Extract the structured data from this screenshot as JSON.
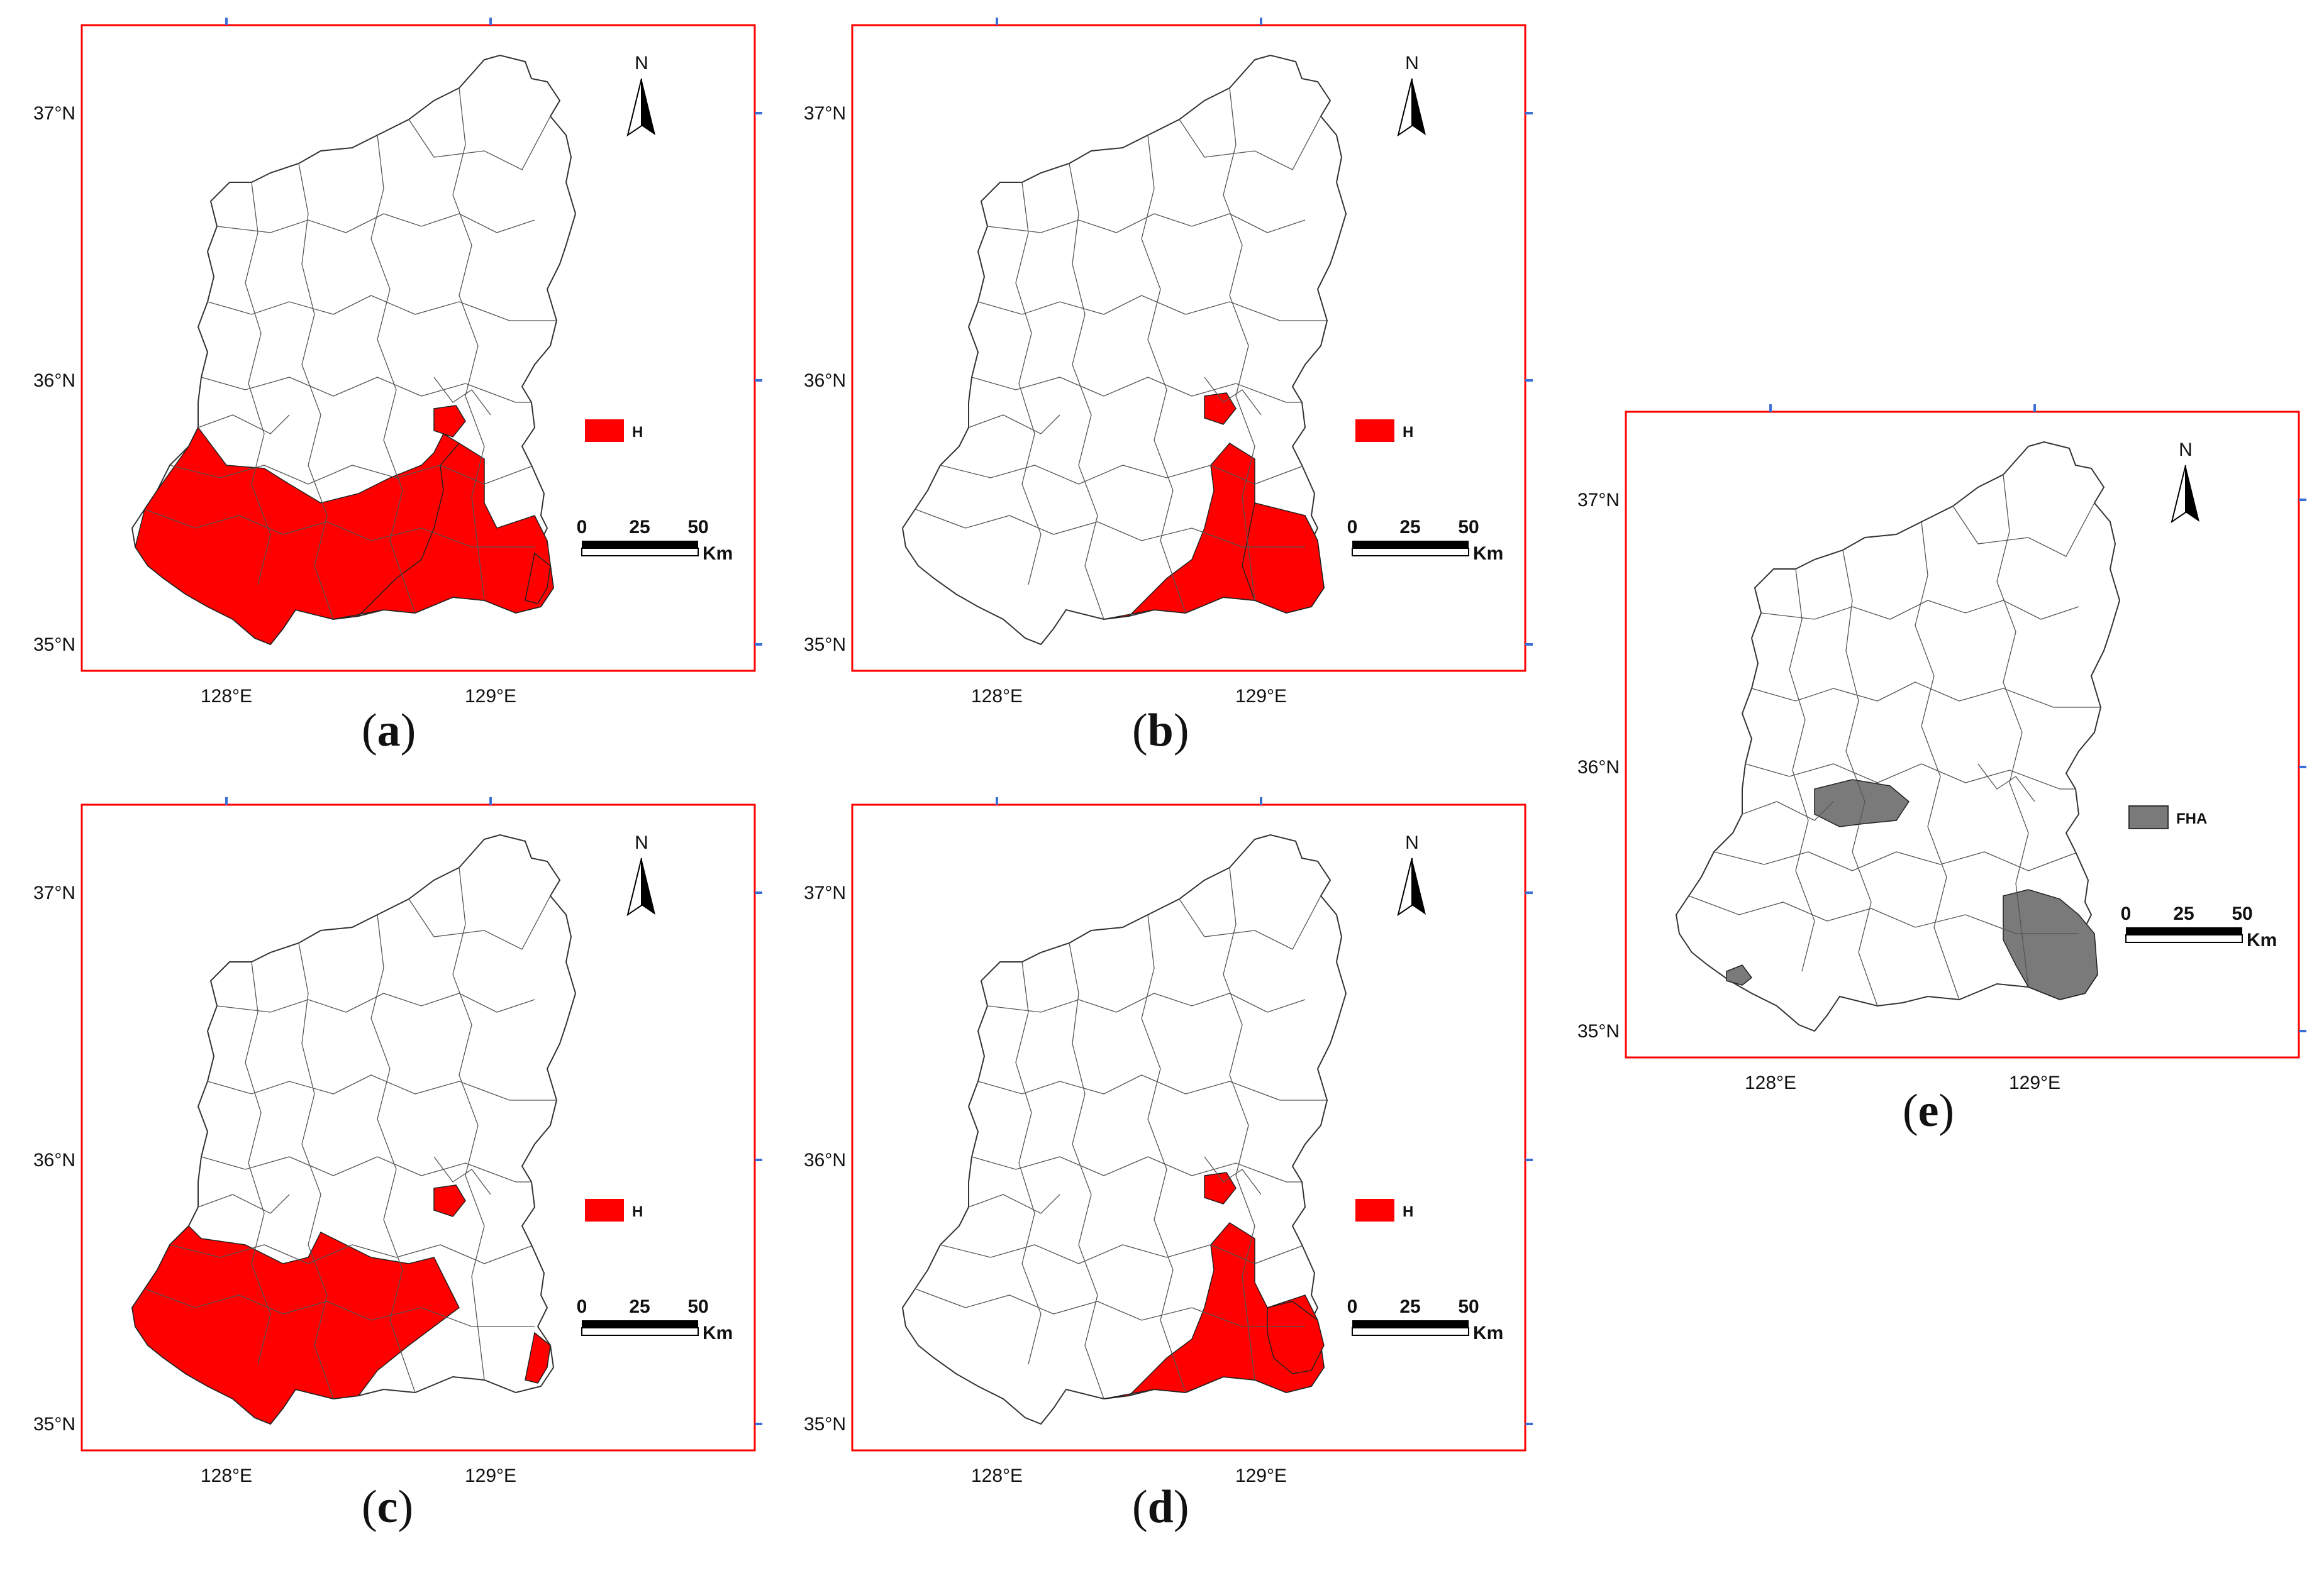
{
  "panels": [
    {
      "id": "a",
      "caption_letter": "a",
      "lat_labels": [
        "37°N",
        "36°N",
        "35°N"
      ],
      "lon_labels": [
        "128°E",
        "129°E"
      ],
      "north_label": "N",
      "legend_label": "H",
      "scale_labels": [
        "0",
        "25",
        "50"
      ],
      "scale_unit": "Km",
      "highlight_color": "#ff0000",
      "highlight_regions": [
        "southwest",
        "south-central",
        "southeast-coast",
        "center-small"
      ]
    },
    {
      "id": "b",
      "caption_letter": "b",
      "lat_labels": [
        "37°N",
        "36°N",
        "35°N"
      ],
      "lon_labels": [
        "128°E",
        "129°E"
      ],
      "north_label": "N",
      "legend_label": "H",
      "scale_labels": [
        "0",
        "25",
        "50"
      ],
      "scale_unit": "Km",
      "highlight_color": "#ff0000",
      "highlight_regions": [
        "south-central",
        "south-east",
        "center-small"
      ]
    },
    {
      "id": "c",
      "caption_letter": "c",
      "lat_labels": [
        "37°N",
        "36°N",
        "35°N"
      ],
      "lon_labels": [
        "128°E",
        "129°E"
      ],
      "north_label": "N",
      "legend_label": "H",
      "scale_labels": [
        "0",
        "25",
        "50"
      ],
      "scale_unit": "Km",
      "highlight_color": "#ff0000",
      "highlight_regions": [
        "southwest-large",
        "southeast-coast",
        "center-small"
      ]
    },
    {
      "id": "d",
      "caption_letter": "d",
      "lat_labels": [
        "37°N",
        "36°N",
        "35°N"
      ],
      "lon_labels": [
        "128°E",
        "129°E"
      ],
      "north_label": "N",
      "legend_label": "H",
      "scale_labels": [
        "0",
        "25",
        "50"
      ],
      "scale_unit": "Km",
      "highlight_color": "#ff0000",
      "highlight_regions": [
        "south-central",
        "south-east-patch",
        "center-small"
      ]
    },
    {
      "id": "e",
      "caption_letter": "e",
      "lat_labels": [
        "37°N",
        "36°N",
        "35°N"
      ],
      "lon_labels": [
        "128°E",
        "129°E"
      ],
      "north_label": "N",
      "legend_label": "FHA",
      "scale_labels": [
        "0",
        "25",
        "50"
      ],
      "scale_unit": "Km",
      "highlight_color": "#7a7a7a",
      "highlight_regions": [
        "center-cluster",
        "southeast",
        "southwest-small"
      ]
    }
  ]
}
